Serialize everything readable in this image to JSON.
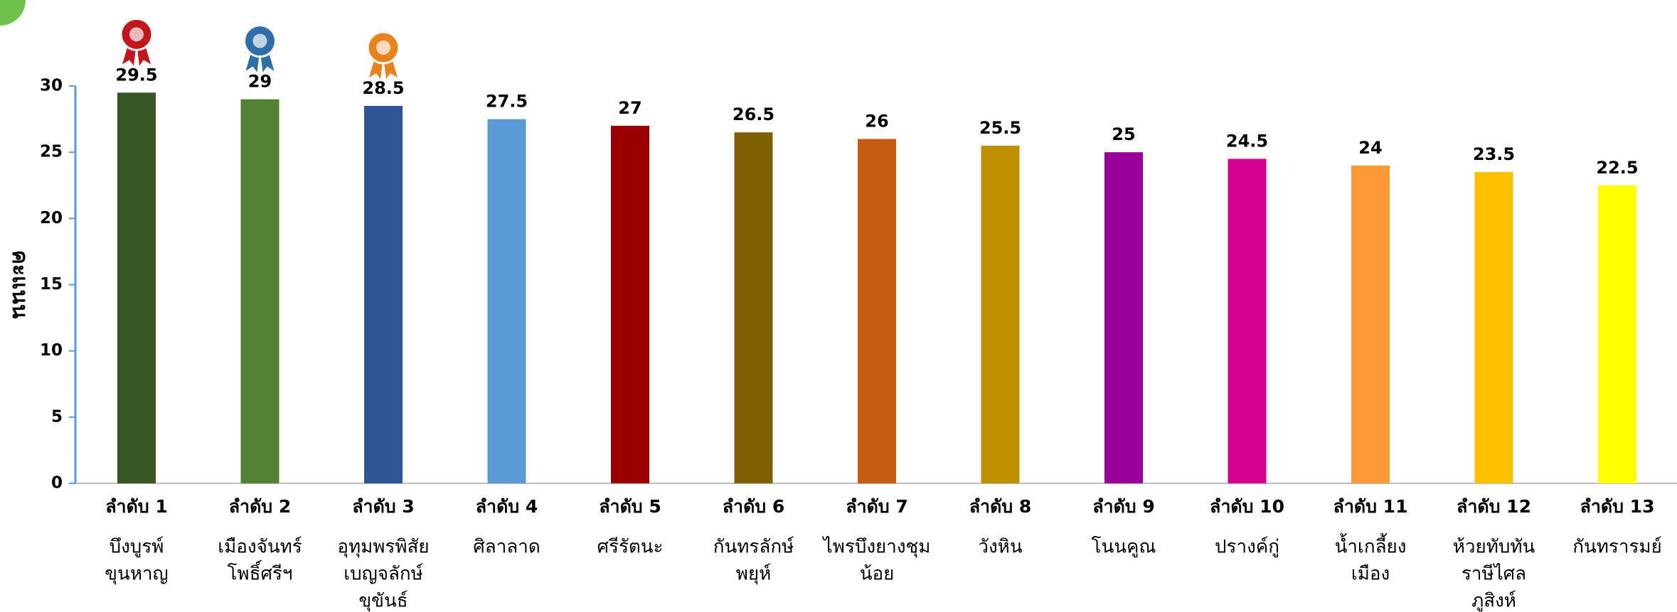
{
  "chart_data": {
    "type": "bar",
    "y_label": "คะแนน",
    "categories": [
      "ลำดับ 1",
      "ลำดับ 2",
      "ลำดับ 3",
      "ลำดับ 4",
      "ลำดับ 5",
      "ลำดับ 6",
      "ลำดับ 7",
      "ลำดับ 8",
      "ลำดับ 9",
      "ลำดับ 10",
      "ลำดับ 11",
      "ลำดับ 12",
      "ลำดับ 13"
    ],
    "sublabels": [
      [
        "บึงบูรพ์",
        "ขุนหาญ"
      ],
      [
        "เมืองจันทร์",
        "โพธิ์ศรีฯ"
      ],
      [
        "อุทุมพรพิสัย",
        "เบญจลักษ์",
        "ขุขันธ์"
      ],
      [
        "ศิลาลาด"
      ],
      [
        "ศรีรัตนะ"
      ],
      [
        "กันทรลักษ์",
        "พยุห์"
      ],
      [
        "ไพรบึงยางชุม",
        "น้อย"
      ],
      [
        "วังหิน"
      ],
      [
        "โนนคูณ"
      ],
      [
        "ปรางค์กู่"
      ],
      [
        "น้ำเกลี้ยง",
        "เมือง"
      ],
      [
        "ห้วยทับทัน",
        "ราษีไศล",
        "ภูสิงห์"
      ],
      [
        "กันทรารมย์"
      ]
    ],
    "values": [
      29.5,
      29,
      28.5,
      27.5,
      27,
      26.5,
      26,
      25.5,
      25,
      24.5,
      24,
      23.5,
      22.5
    ],
    "colors": [
      "#375623",
      "#548235",
      "#2f5597",
      "#5b9bd5",
      "#990000",
      "#7f6000",
      "#c55a11",
      "#bf9000",
      "#990099",
      "#d5008f",
      "#ff9933",
      "#ffc000",
      "#ffff00"
    ],
    "ylim": [
      0,
      30
    ],
    "yticks": [
      0,
      5,
      10,
      15,
      20,
      25,
      30
    ],
    "grid": false
  }
}
